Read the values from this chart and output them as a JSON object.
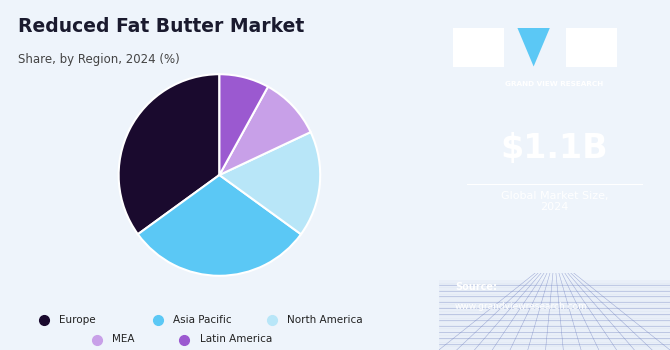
{
  "title": "Reduced Fat Butter Market",
  "subtitle": "Share, by Region, 2024 (%)",
  "labels": [
    "Europe",
    "Asia Pacific",
    "North America",
    "MEA",
    "Latin America"
  ],
  "values": [
    35,
    30,
    17,
    10,
    8
  ],
  "colors": [
    "#1a0a2e",
    "#5bc8f5",
    "#b8e6f8",
    "#c8a0e8",
    "#9b59d0"
  ],
  "startangle": 90,
  "left_bg": "#eef4fb",
  "right_bg": "#3b1a6e",
  "market_size": "$1.1B",
  "market_label": "Global Market Size,\n2024",
  "source_label": "Source:",
  "source_url": "www.grandviewresearch.com",
  "legend_labels": [
    "Europe",
    "Asia Pacific",
    "North America",
    "MEA",
    "Latin America"
  ],
  "legend_colors": [
    "#1a0a2e",
    "#5bc8f5",
    "#b8e6f8",
    "#c8a0e8",
    "#9b59d0"
  ],
  "gvr_text": "GRAND VIEW RESEARCH"
}
